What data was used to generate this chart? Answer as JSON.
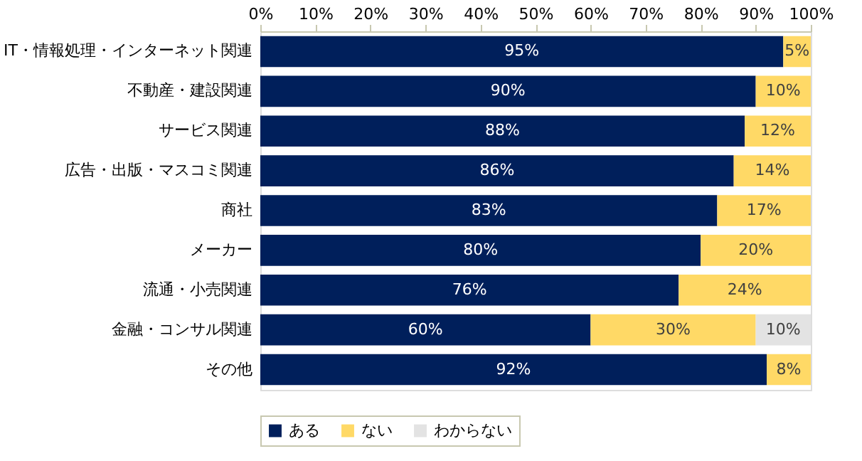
{
  "chart_data": {
    "type": "bar",
    "orientation": "horizontal",
    "stacked": true,
    "categories": [
      "IT・情報処理・インターネット関連",
      "不動産・建設関連",
      "サービス関連",
      "広告・出版・マスコミ関連",
      "商社",
      "メーカー",
      "流通・小売関連",
      "金融・コンサル関連",
      "その他"
    ],
    "series": [
      {
        "name": "ある",
        "color": "#001f5b",
        "values": [
          95,
          90,
          88,
          86,
          83,
          80,
          76,
          60,
          92
        ],
        "value_labels": [
          "95%",
          "90%",
          "88%",
          "86%",
          "83%",
          "80%",
          "76%",
          "60%",
          "92%"
        ]
      },
      {
        "name": "ない",
        "color": "#ffd966",
        "values": [
          5,
          10,
          12,
          14,
          17,
          20,
          24,
          30,
          8
        ],
        "value_labels": [
          "5%",
          "10%",
          "12%",
          "14%",
          "17%",
          "20%",
          "24%",
          "30%",
          "8%"
        ]
      },
      {
        "name": "わからない",
        "color": "#e3e3e3",
        "values": [
          null,
          null,
          null,
          null,
          null,
          null,
          null,
          10,
          null
        ],
        "value_labels": [
          null,
          null,
          null,
          null,
          null,
          null,
          null,
          "10%",
          null
        ]
      }
    ],
    "xlim": [
      0,
      100
    ],
    "xticks": [
      {
        "value": 0,
        "label": "0%"
      },
      {
        "value": 10,
        "label": "10%"
      },
      {
        "value": 20,
        "label": "20%"
      },
      {
        "value": 30,
        "label": "30%"
      },
      {
        "value": 40,
        "label": "40%"
      },
      {
        "value": 50,
        "label": "50%"
      },
      {
        "value": 60,
        "label": "60%"
      },
      {
        "value": 70,
        "label": "70%"
      },
      {
        "value": 80,
        "label": "80%"
      },
      {
        "value": 90,
        "label": "90%"
      },
      {
        "value": 100,
        "label": "100%"
      }
    ],
    "grid": false,
    "legend": "bottom"
  }
}
